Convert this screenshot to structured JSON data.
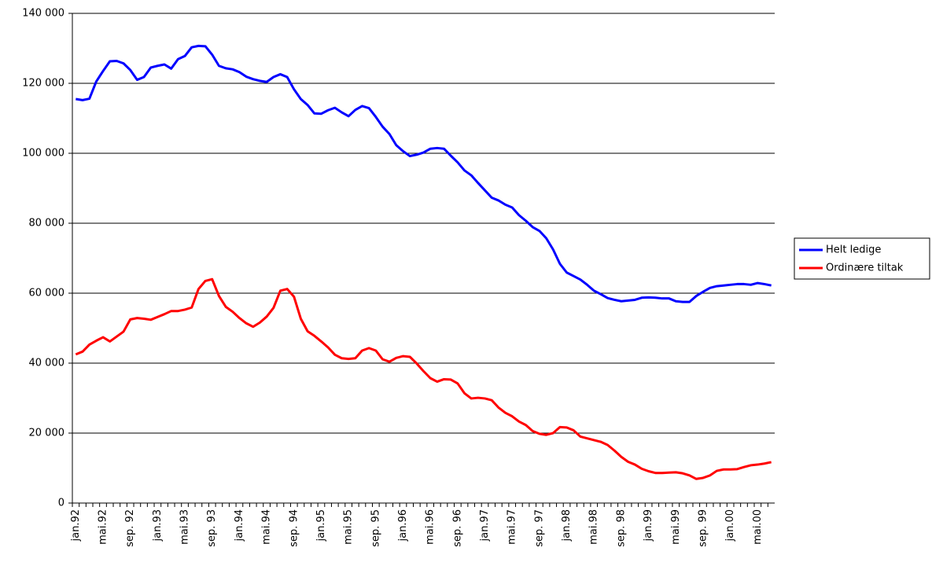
{
  "chart_data": {
    "type": "line",
    "categories": [
      "jan.92",
      null,
      null,
      null,
      "mai.92",
      null,
      null,
      null,
      "sep. 92",
      null,
      null,
      null,
      "jan.93",
      null,
      null,
      null,
      "mai.93",
      null,
      null,
      null,
      "sep. 93",
      null,
      null,
      null,
      "jan.94",
      null,
      null,
      null,
      "mai.94",
      null,
      null,
      null,
      "sep. 94",
      null,
      null,
      null,
      "jan.95",
      null,
      null,
      null,
      "mai.95",
      null,
      null,
      null,
      "sep. 95",
      null,
      null,
      null,
      "jan.96",
      null,
      null,
      null,
      "mai.96",
      null,
      null,
      null,
      "sep. 96",
      null,
      null,
      null,
      "jan.97",
      null,
      null,
      null,
      "mai.97",
      null,
      null,
      null,
      "sep. 97",
      null,
      null,
      null,
      "jan.98",
      null,
      null,
      null,
      "mai.98",
      null,
      null,
      null,
      "sep. 98",
      null,
      null,
      null,
      "jan.99",
      null,
      null,
      null,
      "mai.99",
      null,
      null,
      null,
      "sep. 99",
      null,
      null,
      null,
      "jan.00",
      null,
      null,
      null,
      "mai.00",
      null,
      null
    ],
    "series": [
      {
        "name": "Helt ledige",
        "color": "#0000ff",
        "values": [
          115500,
          115200,
          115600,
          120500,
          123500,
          126300,
          126400,
          125700,
          123800,
          121000,
          121800,
          124500,
          125000,
          125400,
          124200,
          126900,
          127800,
          130300,
          130700,
          130600,
          128200,
          125000,
          124300,
          124000,
          123200,
          121900,
          121200,
          120700,
          120400,
          121800,
          122600,
          121800,
          118300,
          115500,
          113800,
          111400,
          111300,
          112300,
          113000,
          111700,
          110600,
          112400,
          113500,
          112900,
          110400,
          107600,
          105500,
          102300,
          100600,
          99200,
          99600,
          100200,
          101300,
          101500,
          101300,
          99300,
          97400,
          95100,
          93700,
          91500,
          89400,
          87300,
          86500,
          85300,
          84500,
          82300,
          80700,
          78900,
          77800,
          75700,
          72500,
          68400,
          65900,
          64900,
          63900,
          62400,
          60700,
          59700,
          58600,
          58100,
          57700,
          57900,
          58100,
          58700,
          58800,
          58700,
          58500,
          58500,
          57700,
          57500,
          57500,
          59200,
          60400,
          61500,
          62000,
          62200,
          62400,
          62600,
          62600,
          62400,
          62900,
          62600,
          62200
        ]
      },
      {
        "name": "Ordinære tiltak",
        "color": "#ff0000",
        "values": [
          42500,
          43300,
          45300,
          46400,
          47400,
          46200,
          47600,
          49000,
          52500,
          52900,
          52700,
          52400,
          53200,
          54000,
          54900,
          54900,
          55300,
          55900,
          61200,
          63500,
          64000,
          59200,
          56100,
          54700,
          52900,
          51400,
          50400,
          51600,
          53300,
          55800,
          60700,
          61200,
          59000,
          52700,
          49100,
          47800,
          46200,
          44500,
          42400,
          41400,
          41200,
          41400,
          43600,
          44300,
          43600,
          41100,
          40400,
          41500,
          42000,
          41800,
          39900,
          37700,
          35700,
          34700,
          35400,
          35300,
          34200,
          31400,
          29900,
          30100,
          29900,
          29400,
          27300,
          25800,
          24800,
          23300,
          22300,
          20600,
          19800,
          19500,
          20000,
          21700,
          21600,
          20800,
          19000,
          18500,
          18000,
          17500,
          16600,
          15000,
          13200,
          11800,
          11000,
          9800,
          9100,
          8600,
          8600,
          8700,
          8800,
          8500,
          7900,
          6900,
          7200,
          7900,
          9200,
          9600,
          9600,
          9700,
          10300,
          10800,
          11000,
          11300,
          11700
        ]
      }
    ],
    "ylim": [
      0,
      140000
    ],
    "yticks": [
      0,
      {
        "value": 20000,
        "label": "20 000"
      },
      {
        "value": 40000,
        "label": "40 000"
      },
      {
        "value": 60000,
        "label": "60 000"
      },
      {
        "value": 80000,
        "label": "80 000"
      },
      {
        "value": 100000,
        "label": "100 000"
      },
      {
        "value": 120000,
        "label": "120 000"
      },
      {
        "value": 140000,
        "label": "140 000"
      }
    ],
    "grid": true,
    "legend": "right"
  }
}
